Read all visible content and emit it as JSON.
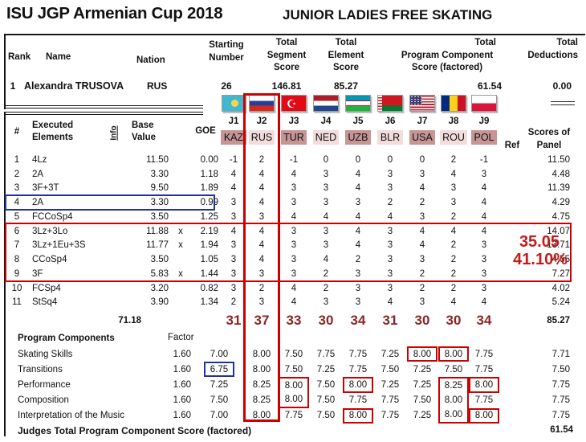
{
  "title": {
    "event": "ISU JGP Armenian Cup 2018",
    "segment": "JUNIOR LADIES FREE SKATING"
  },
  "result_header": {
    "rank_label": "Rank",
    "name_label": "Name",
    "nation_label": "Nation",
    "starting_label": "Starting\nNumber",
    "segment_label": "Total\nSegment\nScore",
    "element_label": "Total\nElement\nScore",
    "component_label": {
      "line1": "Total",
      "line2": "Program Component",
      "line3": "Score (factored)"
    },
    "deductions_label": "Total\nDeductions",
    "rank": "1",
    "name": "Alexandra TRUSOVA",
    "nation": "RUS",
    "starting_number": "26",
    "total_segment_score": "146.81",
    "total_element_score": "85.27",
    "total_component_score": "61.54",
    "total_deductions": "0.00"
  },
  "judges": [
    {
      "id": "J1",
      "nation": "KAZ",
      "flag": "kaz",
      "shade": "dark"
    },
    {
      "id": "J2",
      "nation": "RUS",
      "flag": "rus",
      "shade": "light",
      "column_highlight": "red"
    },
    {
      "id": "J3",
      "nation": "TUR",
      "flag": "tur",
      "shade": "dark"
    },
    {
      "id": "J4",
      "nation": "NED",
      "flag": "ned",
      "shade": "light"
    },
    {
      "id": "J5",
      "nation": "UZB",
      "flag": "uzb",
      "shade": "dark"
    },
    {
      "id": "J6",
      "nation": "BLR",
      "flag": "blr",
      "shade": "light"
    },
    {
      "id": "J7",
      "nation": "USA",
      "flag": "usa",
      "shade": "dark"
    },
    {
      "id": "J8",
      "nation": "ROU",
      "flag": "rou",
      "shade": "light"
    },
    {
      "id": "J9",
      "nation": "POL",
      "flag": "pol",
      "shade": "dark"
    }
  ],
  "panel_header": {
    "scores_of": "Scores of",
    "ref": "Ref",
    "panel": "Panel"
  },
  "elements": {
    "headers": {
      "num": "#",
      "executed": "Executed\nElements",
      "info": "Info",
      "base": "Base\nValue",
      "goe": "GOE"
    },
    "rows": [
      {
        "num": "1",
        "name": "4Lz",
        "base": "11.50",
        "x": "",
        "goe": "0.00",
        "scores": [
          "-1",
          "2",
          "-1",
          "0",
          "0",
          "0",
          "0",
          "2",
          "-1"
        ],
        "panel": "11.50"
      },
      {
        "num": "2",
        "name": "2A",
        "base": "3.30",
        "x": "",
        "goe": "1.18",
        "scores": [
          "4",
          "4",
          "4",
          "3",
          "4",
          "3",
          "3",
          "4",
          "3"
        ],
        "panel": "4.48"
      },
      {
        "num": "3",
        "name": "3F+3T",
        "base": "9.50",
        "x": "",
        "goe": "1.89",
        "scores": [
          "4",
          "4",
          "3",
          "3",
          "4",
          "3",
          "4",
          "3",
          "4"
        ],
        "panel": "11.39"
      },
      {
        "num": "4",
        "name": "2A",
        "base": "3.30",
        "x": "",
        "goe": "0.99",
        "scores": [
          "3",
          "4",
          "3",
          "3",
          "3",
          "2",
          "2",
          "3",
          "4"
        ],
        "panel": "4.29",
        "highlight": "blue-box"
      },
      {
        "num": "5",
        "name": "FCCoSp4",
        "base": "3.50",
        "x": "",
        "goe": "1.25",
        "scores": [
          "3",
          "3",
          "4",
          "4",
          "4",
          "4",
          "3",
          "2",
          "4"
        ],
        "panel": "4.75"
      },
      {
        "num": "6",
        "name": "3Lz+3Lo",
        "base": "11.88",
        "x": "x",
        "goe": "2.19",
        "scores": [
          "4",
          "4",
          "3",
          "3",
          "4",
          "3",
          "4",
          "4",
          "4"
        ],
        "panel": "14.07",
        "highlight": "red-group"
      },
      {
        "num": "7",
        "name": "3Lz+1Eu+3S",
        "base": "11.77",
        "x": "x",
        "goe": "1.94",
        "scores": [
          "3",
          "4",
          "3",
          "3",
          "4",
          "3",
          "4",
          "2",
          "3"
        ],
        "panel": "13.71",
        "highlight": "red-group"
      },
      {
        "num": "8",
        "name": "CCoSp4",
        "base": "3.50",
        "x": "",
        "goe": "1.05",
        "scores": [
          "3",
          "4",
          "3",
          "4",
          "2",
          "3",
          "3",
          "2",
          "3"
        ],
        "panel": "4.55",
        "highlight": "red-group"
      },
      {
        "num": "9",
        "name": "3F",
        "base": "5.83",
        "x": "x",
        "goe": "1.44",
        "scores": [
          "3",
          "3",
          "3",
          "2",
          "3",
          "3",
          "2",
          "2",
          "3"
        ],
        "panel": "7.27",
        "highlight": "red-group"
      },
      {
        "num": "10",
        "name": "FCSp4",
        "base": "3.20",
        "x": "",
        "goe": "0.82",
        "scores": [
          "3",
          "2",
          "4",
          "2",
          "3",
          "3",
          "2",
          "2",
          "3"
        ],
        "panel": "4.02"
      },
      {
        "num": "11",
        "name": "StSq4",
        "base": "3.90",
        "x": "",
        "goe": "1.34",
        "scores": [
          "2",
          "3",
          "4",
          "3",
          "3",
          "4",
          "3",
          "4",
          "4"
        ],
        "panel": "5.24"
      }
    ],
    "totals": {
      "base_value": "71.18",
      "judge_totals": [
        "31",
        "37",
        "33",
        "30",
        "34",
        "31",
        "30",
        "30",
        "34"
      ],
      "panel": "85.27"
    }
  },
  "annotations": {
    "value": "35.05",
    "percent": "41.10%"
  },
  "components": {
    "header": {
      "label": "Program Components",
      "factor_label": "Factor"
    },
    "rows": [
      {
        "name": "Skating Skills",
        "factor": "1.60",
        "scores": [
          "7.00",
          "8.00",
          "7.50",
          "7.75",
          "7.75",
          "7.25",
          "8.00",
          "8.00",
          "7.75"
        ],
        "panel": "7.71",
        "boxes": {
          "6": "single",
          "7": "single"
        }
      },
      {
        "name": "Transitions",
        "factor": "1.60",
        "scores": [
          "6.75",
          "8.00",
          "7.50",
          "7.25",
          "7.75",
          "7.50",
          "7.25",
          "7.50",
          "7.75"
        ],
        "panel": "7.50",
        "boxes": {
          "0": "blue"
        }
      },
      {
        "name": "Performance",
        "factor": "1.60",
        "scores": [
          "7.25",
          "8.25",
          "8.00",
          "7.50",
          "8.00",
          "7.25",
          "7.25",
          "8.25",
          "8.00"
        ],
        "panel": "7.75",
        "boxes": {
          "2": "top",
          "4": "single",
          "7": "top",
          "8": "single"
        }
      },
      {
        "name": "Composition",
        "factor": "1.60",
        "scores": [
          "7.50",
          "8.25",
          "8.00",
          "7.50",
          "7.75",
          "7.75",
          "7.50",
          "8.00",
          "7.75"
        ],
        "panel": "7.75",
        "boxes": {
          "2": "bottom",
          "7": "mid"
        }
      },
      {
        "name": "Interpretation of the Music",
        "factor": "1.60",
        "scores": [
          "7.00",
          "8.00",
          "7.75",
          "7.50",
          "8.00",
          "7.75",
          "7.25",
          "8.00",
          "8.00"
        ],
        "panel": "7.75",
        "boxes": {
          "4": "single",
          "7": "bottom",
          "8": "single"
        }
      }
    ],
    "total": {
      "label": "Judges Total Program Component Score (factored)",
      "value": "61.54"
    }
  },
  "colors": {
    "highlight_box_red": "#cc0000",
    "highlight_box_blue": "#20339b",
    "judge_totals_red": "#8c2423",
    "annotation_red": "#c51a1a",
    "nation_chip_dark": "#c69595",
    "nation_chip_light": "#f3dcdc"
  }
}
